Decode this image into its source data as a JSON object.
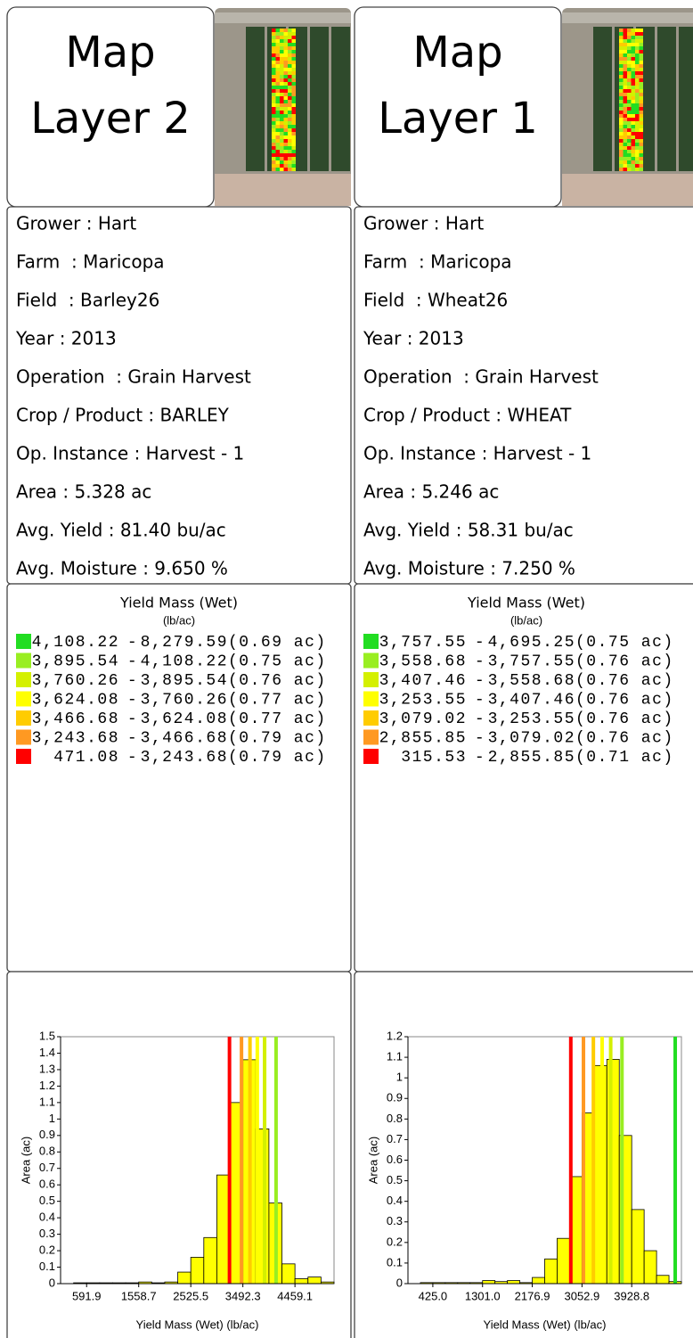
{
  "panels": [
    {
      "title": [
        "Map",
        "Layer 2"
      ],
      "info": [
        "Grower : Hart",
        "Farm  : Maricopa",
        "Field  : Barley26",
        "Year : 2013",
        "Operation  : Grain Harvest",
        "Crop / Product : BARLEY",
        "Op. Instance : Harvest - 1",
        "Area : 5.328 ac",
        "Avg. Yield : 81.40 bu/ac",
        "Avg. Moisture : 9.650 %"
      ],
      "legend": {
        "title": "Yield Mass (Wet)",
        "unit": "(lb/ac)",
        "separator": "-",
        "items": [
          {
            "color": "#22dd22",
            "low": {
              "value": 4108.22,
              "label": "4,108.22"
            },
            "high": {
              "value": 8279.59,
              "label": "8,279.59"
            },
            "area": "(0.69 ac)"
          },
          {
            "color": "#99ee22",
            "low": {
              "value": 3895.54,
              "label": "3,895.54"
            },
            "high": {
              "value": 4108.22,
              "label": "4,108.22"
            },
            "area": "(0.75 ac)"
          },
          {
            "color": "#d4f000",
            "low": {
              "value": 3760.26,
              "label": "3,760.26"
            },
            "high": {
              "value": 3895.54,
              "label": "3,895.54"
            },
            "area": "(0.76 ac)"
          },
          {
            "color": "#ffff00",
            "low": {
              "value": 3624.08,
              "label": "3,624.08"
            },
            "high": {
              "value": 3760.26,
              "label": "3,760.26"
            },
            "area": "(0.77 ac)"
          },
          {
            "color": "#ffcc00",
            "low": {
              "value": 3466.68,
              "label": "3,466.68"
            },
            "high": {
              "value": 3624.08,
              "label": "3,624.08"
            },
            "area": "(0.77 ac)"
          },
          {
            "color": "#ff9922",
            "low": {
              "value": 3243.68,
              "label": "3,243.68"
            },
            "high": {
              "value": 3466.68,
              "label": "3,466.68"
            },
            "area": "(0.79 ac)"
          },
          {
            "color": "#ff0000",
            "low": 471.08,
            "high": {
              "value": 3243.68,
              "label": "3,243.68"
            },
            "area": "(0.79 ac)"
          }
        ]
      }
    },
    {
      "title": [
        "Map",
        "Layer 1"
      ],
      "info": [
        "Grower : Hart",
        "Farm  : Maricopa",
        "Field  : Wheat26",
        "Year : 2013",
        "Operation  : Grain Harvest",
        "Crop / Product : WHEAT",
        "Op. Instance : Harvest - 1",
        "Area : 5.246 ac",
        "Avg. Yield : 58.31 bu/ac",
        "Avg. Moisture : 7.250 %"
      ],
      "legend": {
        "title": "Yield Mass (Wet)",
        "unit": "(lb/ac)",
        "separator": "-",
        "items": [
          {
            "color": "#22dd22",
            "low": {
              "value": 3757.55,
              "label": "3,757.55"
            },
            "high": {
              "value": 4695.25,
              "label": "4,695.25"
            },
            "area": "(0.75 ac)"
          },
          {
            "color": "#99ee22",
            "low": {
              "value": 3558.68,
              "label": "3,558.68"
            },
            "high": {
              "value": 3757.55,
              "label": "3,757.55"
            },
            "area": "(0.76 ac)"
          },
          {
            "color": "#d4f000",
            "low": {
              "value": 3407.46,
              "label": "3,407.46"
            },
            "high": {
              "value": 3558.68,
              "label": "3,558.68"
            },
            "area": "(0.76 ac)"
          },
          {
            "color": "#ffff00",
            "low": {
              "value": 3253.55,
              "label": "3,253.55"
            },
            "high": {
              "value": 3407.46,
              "label": "3,407.46"
            },
            "area": "(0.76 ac)"
          },
          {
            "color": "#ffcc00",
            "low": {
              "value": 3079.02,
              "label": "3,079.02"
            },
            "high": {
              "value": 3253.55,
              "label": "3,253.55"
            },
            "area": "(0.76 ac)"
          },
          {
            "color": "#ff9922",
            "low": {
              "value": 2855.85,
              "label": "2,855.85"
            },
            "high": {
              "value": 3079.02,
              "label": "3,079.02"
            },
            "area": "(0.76 ac)"
          },
          {
            "color": "#ff0000",
            "low": 315.53,
            "high": {
              "value": 2855.85,
              "label": "2,855.85"
            },
            "area": "(0.71 ac)"
          }
        ]
      }
    }
  ],
  "chart_data": [
    {
      "type": "histogram",
      "bar_color": "#ffff00",
      "bins": [
        108.5,
        350.2,
        591.9,
        833.6,
        1075.3,
        1317.0,
        1558.7,
        1800.4,
        2042.1,
        2283.8,
        2525.5,
        2767.2,
        3008.9,
        3250.6,
        3492.3,
        3734.0,
        3975.7,
        4217.4,
        4459.1,
        4700.8,
        4942.5,
        5184.2
      ],
      "counts": [
        0,
        0.005,
        0.005,
        0.005,
        0.005,
        0.005,
        0.01,
        0.005,
        0.01,
        0.07,
        0.16,
        0.28,
        0.66,
        1.1,
        1.36,
        0.94,
        0.49,
        0.12,
        0.03,
        0.04,
        0.01
      ],
      "xlim": [
        108.5,
        5184.2
      ],
      "ylim": [
        0,
        1.5
      ],
      "xticks": [
        591.9,
        1558.7,
        2525.5,
        3492.3,
        4459.1
      ],
      "yticks": [
        0,
        0.1,
        0.2,
        0.3,
        0.4,
        0.5,
        0.6,
        0.7,
        0.8,
        0.9,
        1,
        1.1,
        1.2,
        1.3,
        1.4,
        1.5
      ],
      "xlabel": "Yield Mass (Wet) (lb/ac)",
      "ylabel": "Area (ac)"
    },
    {
      "type": "histogram",
      "bar_color": "#ffff00",
      "bins": [
        -13.0,
        206.0,
        425.0,
        644.0,
        862.9,
        1081.9,
        1301.0,
        1519.9,
        1738.9,
        1957.9,
        2176.9,
        2395.9,
        2614.9,
        2833.9,
        3052.9,
        3271.9,
        3490.8,
        3709.8,
        3928.8,
        4147.8,
        4366.7,
        4585.7,
        4804.7
      ],
      "counts": [
        0,
        0.005,
        0.005,
        0.005,
        0.005,
        0.005,
        0.015,
        0.01,
        0.015,
        0.005,
        0.03,
        0.12,
        0.22,
        0.52,
        0.83,
        1.06,
        1.09,
        0.72,
        0.36,
        0.16,
        0.04,
        0.01
      ],
      "xlim": [
        -13.0,
        4804.7
      ],
      "ylim": [
        0,
        1.2
      ],
      "xticks": [
        {
          "value": 425.0,
          "label": "425.0"
        },
        {
          "value": 1301.0,
          "label": "1301.0"
        },
        2176.9,
        3052.9,
        3928.8
      ],
      "yticks": [
        0,
        0.1,
        0.2,
        0.3,
        0.4,
        0.5,
        0.6,
        0.7,
        0.8,
        0.9,
        1,
        1.1,
        1.2
      ],
      "xlabel": "Yield Mass (Wet) (lb/ac)",
      "ylabel": "Area (ac)"
    }
  ]
}
